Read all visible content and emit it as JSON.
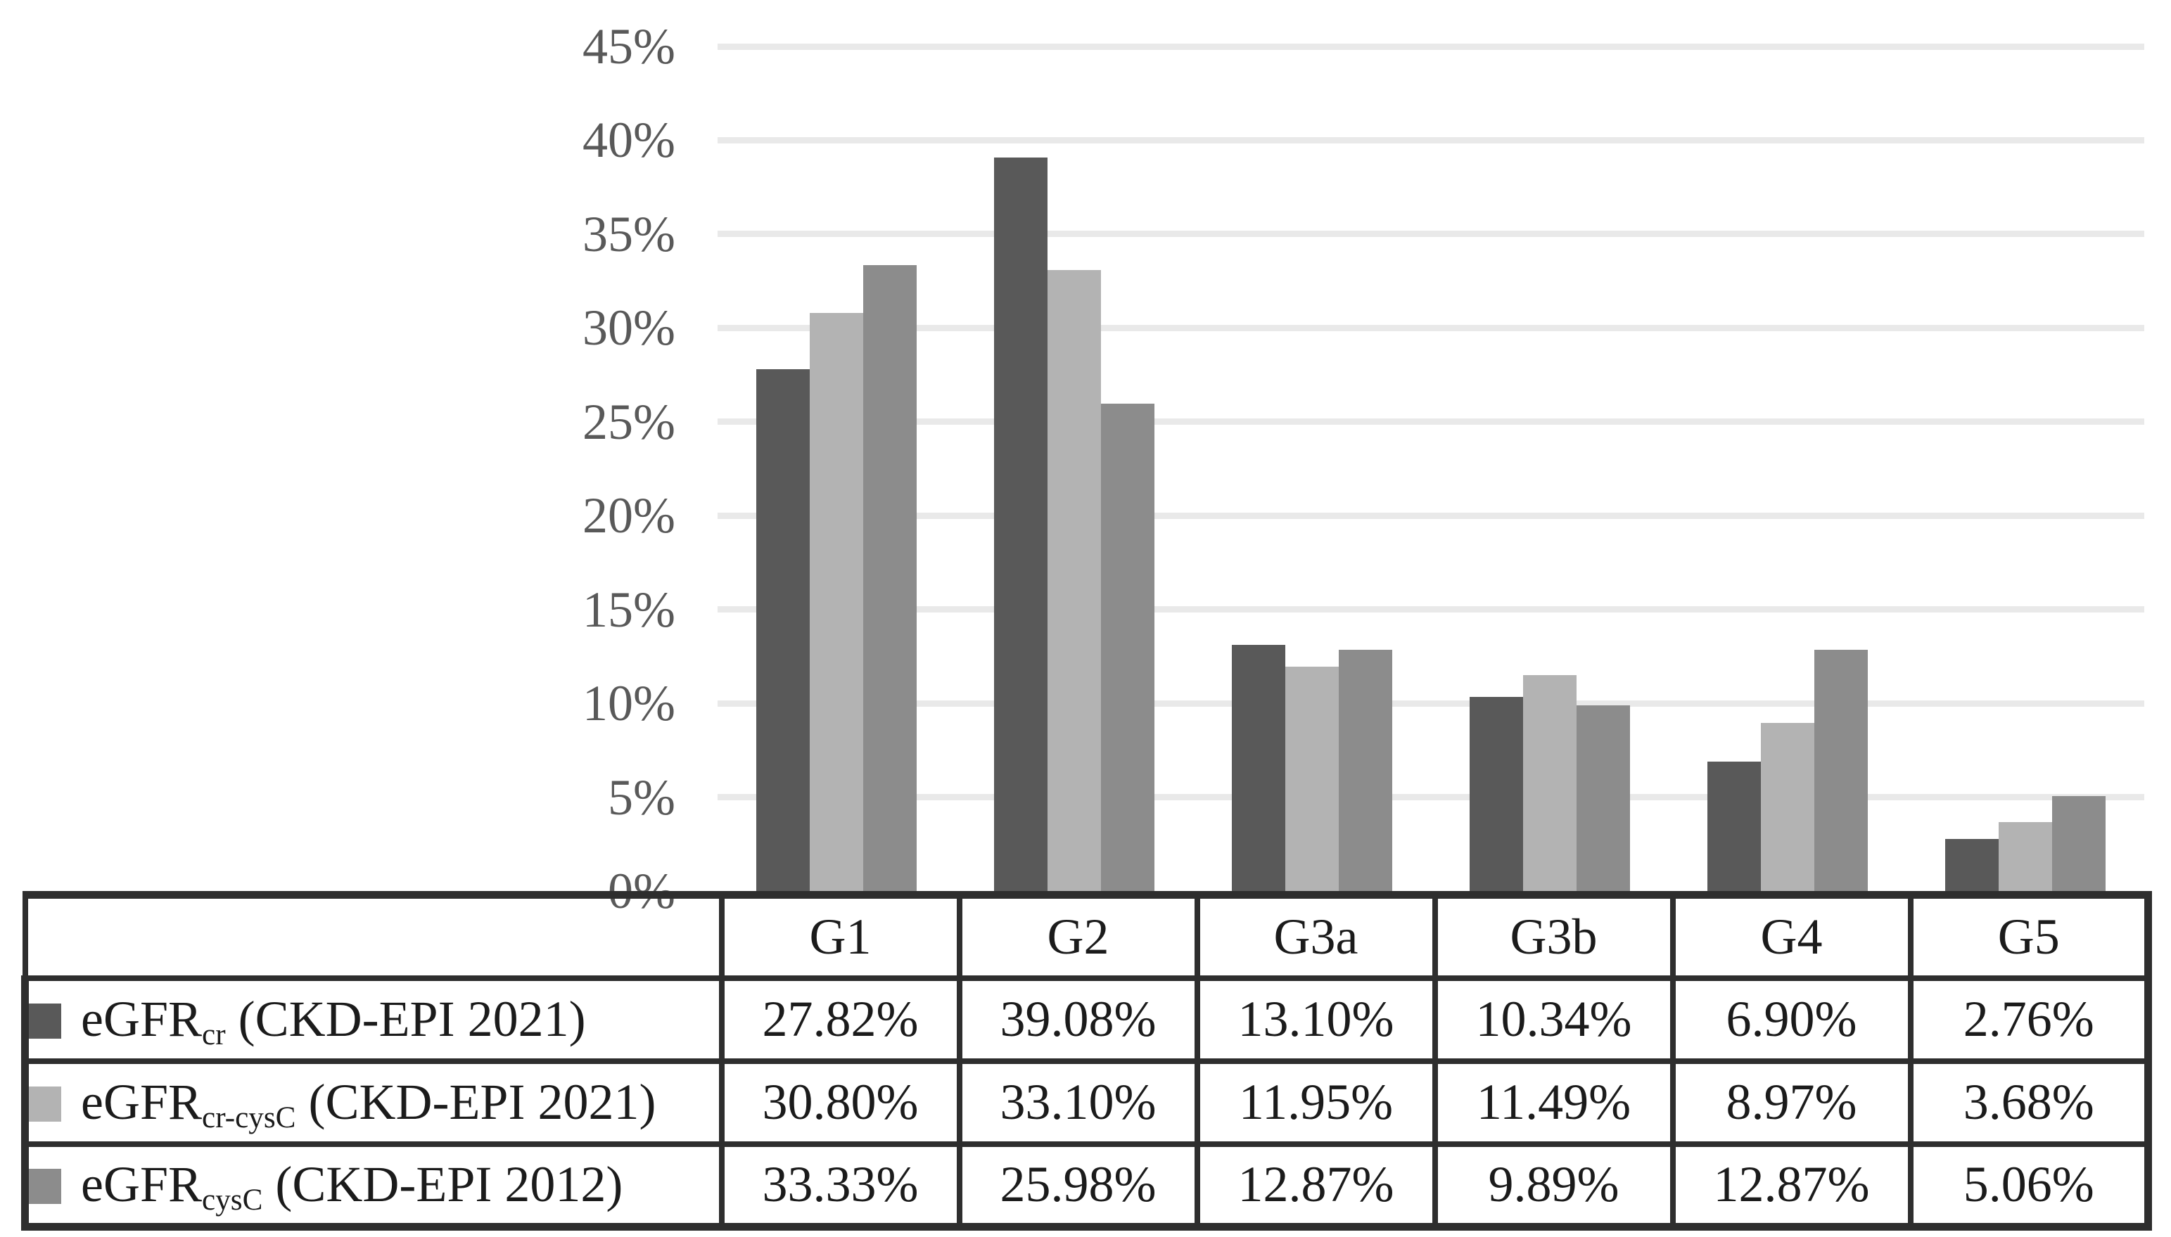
{
  "chart_data": {
    "type": "bar",
    "title": "",
    "xlabel": "",
    "ylabel": "",
    "categories": [
      "G1",
      "G2",
      "G3a",
      "G3b",
      "G4",
      "G5"
    ],
    "series": [
      {
        "name": "eGFR_cr (CKD-EPI 2021)",
        "label": {
          "base": "eGFR",
          "sub": "cr",
          "rest": " (CKD-EPI 2021)"
        },
        "color": "#595959",
        "values": [
          27.82,
          39.08,
          13.1,
          10.34,
          6.9,
          2.76
        ]
      },
      {
        "name": "eGFR_cr-cysC (CKD-EPI 2021)",
        "label": {
          "base": "eGFR",
          "sub": "cr-cysC",
          "rest": " (CKD-EPI 2021)"
        },
        "color": "#b3b3b3",
        "values": [
          30.8,
          33.1,
          11.95,
          11.49,
          8.97,
          3.68
        ]
      },
      {
        "name": "eGFR_cysC (CKD-EPI 2012)",
        "label": {
          "base": "eGFR",
          "sub": "cysC",
          "rest": " (CKD-EPI 2012)"
        },
        "color": "#8c8c8c",
        "values": [
          33.33,
          25.98,
          12.87,
          9.89,
          12.87,
          5.06
        ]
      }
    ],
    "ylim": [
      0,
      45
    ],
    "ytick_step": 5,
    "ytick_labels": [
      "0%",
      "5%",
      "10%",
      "15%",
      "20%",
      "25%",
      "30%",
      "35%",
      "40%",
      "45%"
    ],
    "grid": true,
    "gridline_color": "#e9e9e9",
    "axis_label_color": "#595959",
    "legend_position": "data-table-left-column"
  },
  "table": {
    "column_headers": [
      "G1",
      "G2",
      "G3a",
      "G3b",
      "G4",
      "G5"
    ],
    "rows": [
      {
        "legend": {
          "base": "eGFR",
          "sub": "cr",
          "rest": " (CKD-EPI 2021)"
        },
        "swatch_color": "#595959",
        "values": [
          "27.82%",
          "39.08%",
          "13.10%",
          "10.34%",
          "6.90%",
          "2.76%"
        ]
      },
      {
        "legend": {
          "base": "eGFR",
          "sub": "cr-cysC",
          "rest": " (CKD-EPI 2021)"
        },
        "swatch_color": "#b3b3b3",
        "values": [
          "30.80%",
          "33.10%",
          "11.95%",
          "11.49%",
          "8.97%",
          "3.68%"
        ]
      },
      {
        "legend": {
          "base": "eGFR",
          "sub": "cysC",
          "rest": " (CKD-EPI 2012)"
        },
        "swatch_color": "#8c8c8c",
        "values": [
          "33.33%",
          "25.98%",
          "12.87%",
          "9.89%",
          "12.87%",
          "5.06%"
        ]
      }
    ]
  }
}
